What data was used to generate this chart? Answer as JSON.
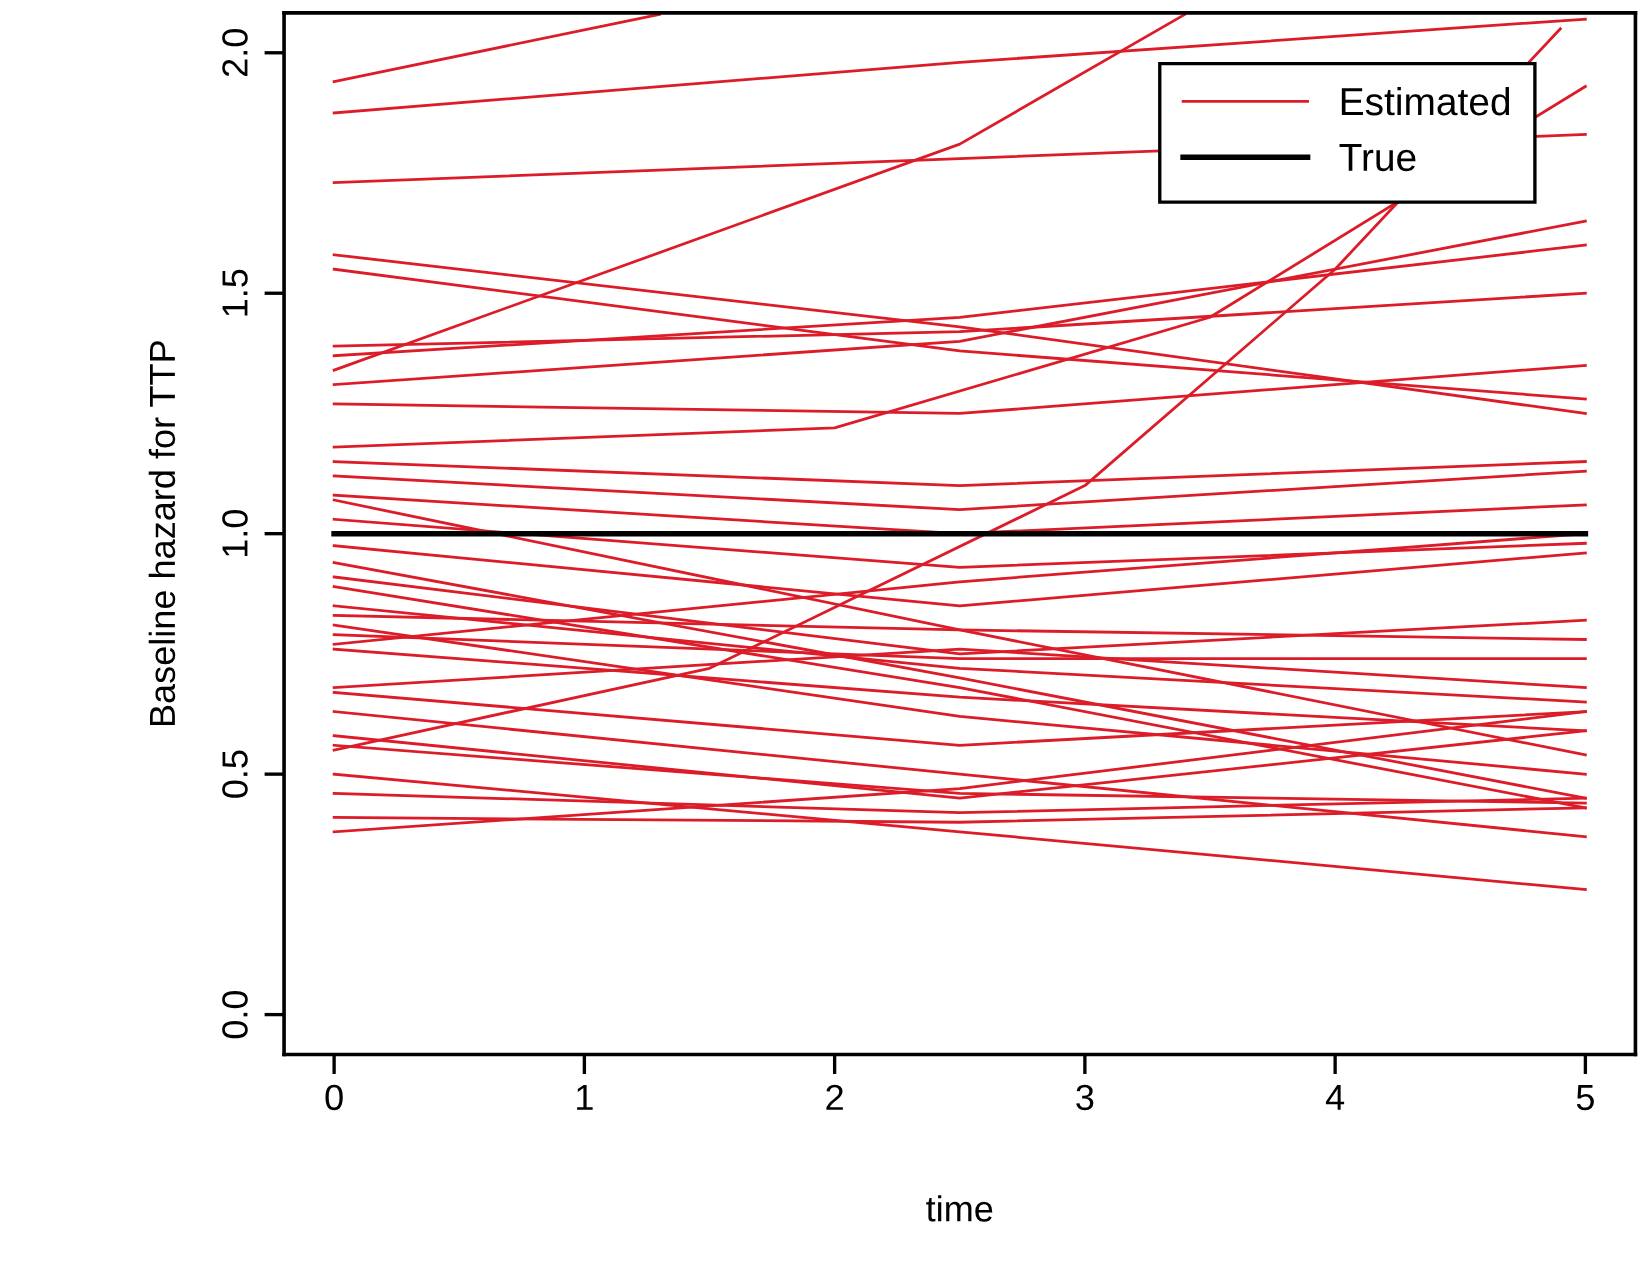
{
  "chart_data": {
    "type": "line",
    "xlabel": "time",
    "ylabel": "Baseline hazard for TTP",
    "xlim": [
      -0.2,
      5.2
    ],
    "ylim": [
      -0.083,
      2.083
    ],
    "xticks": [
      0,
      1,
      2,
      3,
      4,
      5
    ],
    "yticks": [
      {
        "value": 0,
        "label": "0.0"
      },
      {
        "value": 0.5,
        "label": "0.5"
      },
      {
        "value": 1,
        "label": "1.0"
      },
      {
        "value": 1.5,
        "label": "1.5"
      },
      {
        "value": 2,
        "label": "2.0"
      }
    ],
    "grid": false,
    "legend": "top right",
    "marker": "none",
    "line_style": "solid",
    "series": [
      {
        "name": "Estimated",
        "color": "#dc1c28",
        "x": [
          0,
          2.5,
          5
        ],
        "values": [
          1.73,
          1.78,
          1.83
        ]
      },
      {
        "color": "#dc1c28",
        "x": [
          0,
          1.3
        ],
        "values": [
          1.94,
          2.08
        ]
      },
      {
        "color": "#dc1c28",
        "x": [
          0,
          2.5,
          5
        ],
        "values": [
          1.875,
          1.98,
          2.07
        ]
      },
      {
        "color": "#dc1c28",
        "x": [
          0,
          2.5,
          3.4
        ],
        "values": [
          1.34,
          1.81,
          2.08
        ]
      },
      {
        "color": "#dc1c28",
        "x": [
          0,
          2.5,
          5
        ],
        "values": [
          1.58,
          1.43,
          1.25
        ]
      },
      {
        "color": "#dc1c28",
        "x": [
          0,
          2.5,
          5
        ],
        "values": [
          1.55,
          1.38,
          1.28
        ]
      },
      {
        "color": "#dc1c28",
        "x": [
          0,
          2.5,
          5
        ],
        "values": [
          1.39,
          1.42,
          1.5
        ]
      },
      {
        "color": "#dc1c28",
        "x": [
          0,
          2.5,
          5
        ],
        "values": [
          1.37,
          1.45,
          1.6
        ]
      },
      {
        "color": "#dc1c28",
        "x": [
          0,
          2.5,
          5
        ],
        "values": [
          1.31,
          1.4,
          1.65
        ]
      },
      {
        "color": "#dc1c28",
        "x": [
          0,
          2.5,
          5
        ],
        "values": [
          1.27,
          1.25,
          1.35
        ]
      },
      {
        "color": "#dc1c28",
        "x": [
          0,
          2,
          3.5,
          5
        ],
        "values": [
          1.18,
          1.22,
          1.45,
          1.93
        ]
      },
      {
        "color": "#dc1c28",
        "x": [
          0,
          2.5,
          5
        ],
        "values": [
          1.15,
          1.1,
          1.15
        ]
      },
      {
        "color": "#dc1c28",
        "x": [
          0,
          2.5,
          5
        ],
        "values": [
          1.12,
          1.05,
          1.13
        ]
      },
      {
        "color": "#dc1c28",
        "x": [
          0,
          2.5,
          5
        ],
        "values": [
          1.08,
          1.0,
          1.06
        ]
      },
      {
        "color": "#dc1c28",
        "x": [
          0,
          2.5,
          5
        ],
        "values": [
          1.07,
          0.8,
          0.54
        ]
      },
      {
        "color": "#dc1c28",
        "x": [
          0,
          2.5,
          5
        ],
        "values": [
          1.03,
          0.93,
          0.98
        ]
      },
      {
        "color": "#dc1c28",
        "x": [
          0,
          1.5,
          3,
          4,
          4.9
        ],
        "values": [
          0.55,
          0.72,
          1.1,
          1.55,
          2.05
        ]
      },
      {
        "color": "#dc1c28",
        "x": [
          0,
          2.5,
          5
        ],
        "values": [
          0.975,
          0.85,
          0.96
        ]
      },
      {
        "color": "#dc1c28",
        "x": [
          0,
          2.5,
          5
        ],
        "values": [
          0.94,
          0.7,
          0.45
        ]
      },
      {
        "color": "#dc1c28",
        "x": [
          0,
          2.5,
          5
        ],
        "values": [
          0.91,
          0.75,
          0.82
        ]
      },
      {
        "color": "#dc1c28",
        "x": [
          0,
          2.5,
          5
        ],
        "values": [
          0.89,
          0.68,
          0.43
        ]
      },
      {
        "color": "#dc1c28",
        "x": [
          0,
          2.5,
          5
        ],
        "values": [
          0.85,
          0.72,
          0.65
        ]
      },
      {
        "color": "#dc1c28",
        "x": [
          0,
          2.5,
          5
        ],
        "values": [
          0.83,
          0.8,
          0.78
        ]
      },
      {
        "color": "#dc1c28",
        "x": [
          0,
          2.5,
          5
        ],
        "values": [
          0.81,
          0.62,
          0.5
        ]
      },
      {
        "color": "#dc1c28",
        "x": [
          0,
          2.5,
          5
        ],
        "values": [
          0.79,
          0.74,
          0.74
        ]
      },
      {
        "color": "#dc1c28",
        "x": [
          0,
          2.5,
          5
        ],
        "values": [
          0.77,
          0.9,
          1.0
        ]
      },
      {
        "color": "#dc1c28",
        "x": [
          0,
          2.5,
          5
        ],
        "values": [
          0.76,
          0.66,
          0.59
        ]
      },
      {
        "color": "#dc1c28",
        "x": [
          0,
          2.5,
          5
        ],
        "values": [
          0.68,
          0.76,
          0.68
        ]
      },
      {
        "color": "#dc1c28",
        "x": [
          0,
          2.5,
          5
        ],
        "values": [
          0.67,
          0.56,
          0.63
        ]
      },
      {
        "color": "#dc1c28",
        "x": [
          0,
          2.5,
          5
        ],
        "values": [
          0.63,
          0.5,
          0.37
        ]
      },
      {
        "color": "#dc1c28",
        "x": [
          0,
          2.5,
          5
        ],
        "values": [
          0.58,
          0.45,
          0.59
        ]
      },
      {
        "color": "#dc1c28",
        "x": [
          0,
          2.5,
          5
        ],
        "values": [
          0.56,
          0.46,
          0.44
        ]
      },
      {
        "color": "#dc1c28",
        "x": [
          0,
          2.5,
          5
        ],
        "values": [
          0.5,
          0.38,
          0.26
        ]
      },
      {
        "color": "#dc1c28",
        "x": [
          0,
          2.5,
          5
        ],
        "values": [
          0.46,
          0.42,
          0.45
        ]
      },
      {
        "color": "#dc1c28",
        "x": [
          0,
          2.5,
          5
        ],
        "values": [
          0.41,
          0.4,
          0.43
        ]
      },
      {
        "color": "#dc1c28",
        "x": [
          0,
          2.5,
          5
        ],
        "values": [
          0.38,
          0.47,
          0.63
        ]
      },
      {
        "name": "True",
        "color": "#000000",
        "x": [
          0,
          5
        ],
        "values": [
          1.0,
          1.0
        ]
      }
    ]
  }
}
